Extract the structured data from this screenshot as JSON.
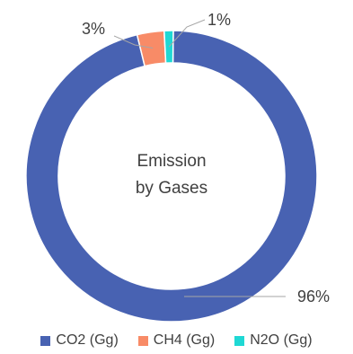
{
  "chart_data": {
    "type": "pie",
    "title": "Emission\nby Gases",
    "title_lines": [
      "Emission",
      "by Gases"
    ],
    "categories": [
      "CO2 (Gg)",
      "CH4 (Gg)",
      "N2O (Gg)"
    ],
    "values": [
      96,
      3,
      1
    ],
    "data_labels": [
      "96%",
      "3%",
      "1%"
    ],
    "colors": [
      "#4862B2",
      "#F88B67",
      "#1FD8D4"
    ],
    "style": "donut",
    "legend": "bottom"
  }
}
